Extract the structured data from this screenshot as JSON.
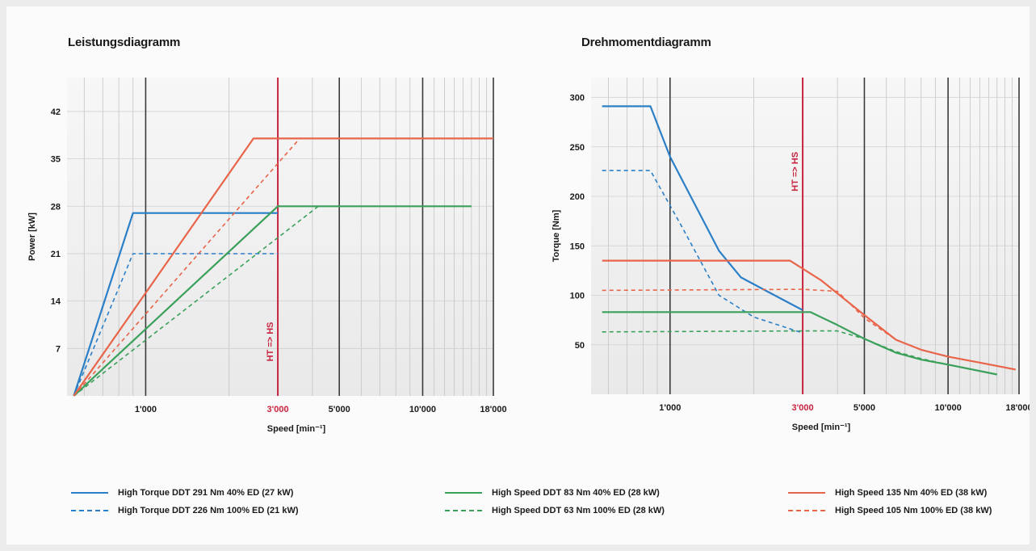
{
  "legend": [
    {
      "text": "High Torque DDT 291 Nm 40% ED (27 kW)",
      "color": "#2b7fc7",
      "style": "solid"
    },
    {
      "text": "High Torque DDT 226 Nm 100% ED (21 kW)",
      "color": "#2b7fc7",
      "style": "dashed"
    },
    {
      "text": "High Speed  DDT 83 Nm 40% ED (28 kW)",
      "color": "#3aa05a",
      "style": "solid"
    },
    {
      "text": "High Speed  DDT 63 Nm 100% ED (28 kW)",
      "color": "#3aa05a",
      "style": "dashed"
    },
    {
      "text": "High Speed  135 Nm 40% ED (38 kW)",
      "color": "#e8654a",
      "style": "solid"
    },
    {
      "text": "High Speed  105 Nm 100% ED (38 kW)",
      "color": "#e8654a",
      "style": "dashed"
    }
  ],
  "chart_data": [
    {
      "type": "line",
      "title": "Leistungsdiagramm",
      "xlabel": "Speed [min⁻¹]",
      "ylabel": "Power [kW]",
      "x_scale": "log",
      "x_ticks": [
        1000,
        3000,
        5000,
        10000,
        18000
      ],
      "x_tick_labels": [
        "1'000",
        "3'000",
        "5'000",
        "10'000",
        "18'000"
      ],
      "y_ticks": [
        7,
        14,
        21,
        28,
        35,
        42
      ],
      "y_tick_labels": [
        "7",
        "14",
        "21",
        "28",
        "35",
        "42"
      ],
      "xlim": [
        520,
        18000
      ],
      "ylim": [
        0,
        47
      ],
      "grid": true,
      "marker": {
        "x": 3000,
        "label": "HT => HS"
      },
      "series": [
        {
          "color": "#2b7fc7",
          "style": "solid",
          "points": [
            [
              550,
              0
            ],
            [
              900,
              27
            ],
            [
              3000,
              27
            ]
          ]
        },
        {
          "color": "#2b7fc7",
          "style": "dashed",
          "points": [
            [
              550,
              0
            ],
            [
              900,
              21
            ],
            [
              3000,
              21
            ]
          ]
        },
        {
          "color": "#3aa05a",
          "style": "solid",
          "points": [
            [
              550,
              0
            ],
            [
              3000,
              28
            ],
            [
              15000,
              28
            ]
          ]
        },
        {
          "color": "#3aa05a",
          "style": "dashed",
          "points": [
            [
              550,
              0
            ],
            [
              4200,
              28
            ]
          ]
        },
        {
          "color": "#e8654a",
          "style": "solid",
          "points": [
            [
              550,
              0
            ],
            [
              2450,
              38
            ],
            [
              18000,
              38
            ]
          ]
        },
        {
          "color": "#e8654a",
          "style": "dashed",
          "points": [
            [
              550,
              0
            ],
            [
              3600,
              38
            ]
          ]
        }
      ]
    },
    {
      "type": "line",
      "title": "Drehmomentdiagramm",
      "xlabel": "Speed [min⁻¹]",
      "ylabel": "Torque [Nm]",
      "x_scale": "log",
      "x_ticks": [
        1000,
        3000,
        5000,
        10000,
        18000
      ],
      "x_tick_labels": [
        "1'000",
        "3'000",
        "5'000",
        "10'000",
        "18'000"
      ],
      "y_ticks": [
        50,
        100,
        150,
        200,
        250,
        300
      ],
      "y_tick_labels": [
        "50",
        "100",
        "150",
        "200",
        "250",
        "300"
      ],
      "xlim": [
        520,
        18000
      ],
      "ylim": [
        0,
        320
      ],
      "grid": true,
      "marker": {
        "x": 3000,
        "label": "HT => HS"
      },
      "series": [
        {
          "color": "#2b7fc7",
          "style": "solid",
          "points": [
            [
              570,
              291
            ],
            [
              850,
              291
            ],
            [
              1000,
              240
            ],
            [
              1500,
              145
            ],
            [
              1800,
              118
            ],
            [
              2200,
              105
            ],
            [
              3000,
              85
            ]
          ]
        },
        {
          "color": "#2b7fc7",
          "style": "dashed",
          "points": [
            [
              570,
              226
            ],
            [
              850,
              226
            ],
            [
              1100,
              170
            ],
            [
              1500,
              100
            ],
            [
              2000,
              78
            ],
            [
              3000,
              62
            ]
          ]
        },
        {
          "color": "#3aa05a",
          "style": "solid",
          "points": [
            [
              570,
              83
            ],
            [
              3200,
              83
            ],
            [
              4000,
              70
            ],
            [
              5000,
              56
            ],
            [
              6500,
              42
            ],
            [
              8000,
              35
            ],
            [
              10000,
              30
            ],
            [
              15000,
              20
            ]
          ]
        },
        {
          "color": "#3aa05a",
          "style": "dashed",
          "points": [
            [
              570,
              63
            ],
            [
              3000,
              64
            ],
            [
              4000,
              64
            ],
            [
              5000,
              56
            ],
            [
              6500,
              43
            ],
            [
              8000,
              36
            ],
            [
              10000,
              30
            ],
            [
              15000,
              20
            ]
          ]
        },
        {
          "color": "#e8654a",
          "style": "solid",
          "points": [
            [
              570,
              135
            ],
            [
              2700,
              135
            ],
            [
              3500,
              115
            ],
            [
              5000,
              80
            ],
            [
              6500,
              55
            ],
            [
              8000,
              45
            ],
            [
              10000,
              38
            ],
            [
              13000,
              32
            ],
            [
              17500,
              25
            ]
          ]
        },
        {
          "color": "#e8654a",
          "style": "dashed",
          "points": [
            [
              570,
              105
            ],
            [
              3000,
              106
            ],
            [
              4000,
              104
            ],
            [
              5000,
              77
            ],
            [
              6500,
              55
            ],
            [
              8000,
              45
            ],
            [
              10000,
              38
            ],
            [
              13000,
              32
            ],
            [
              17500,
              25
            ]
          ]
        }
      ]
    }
  ]
}
